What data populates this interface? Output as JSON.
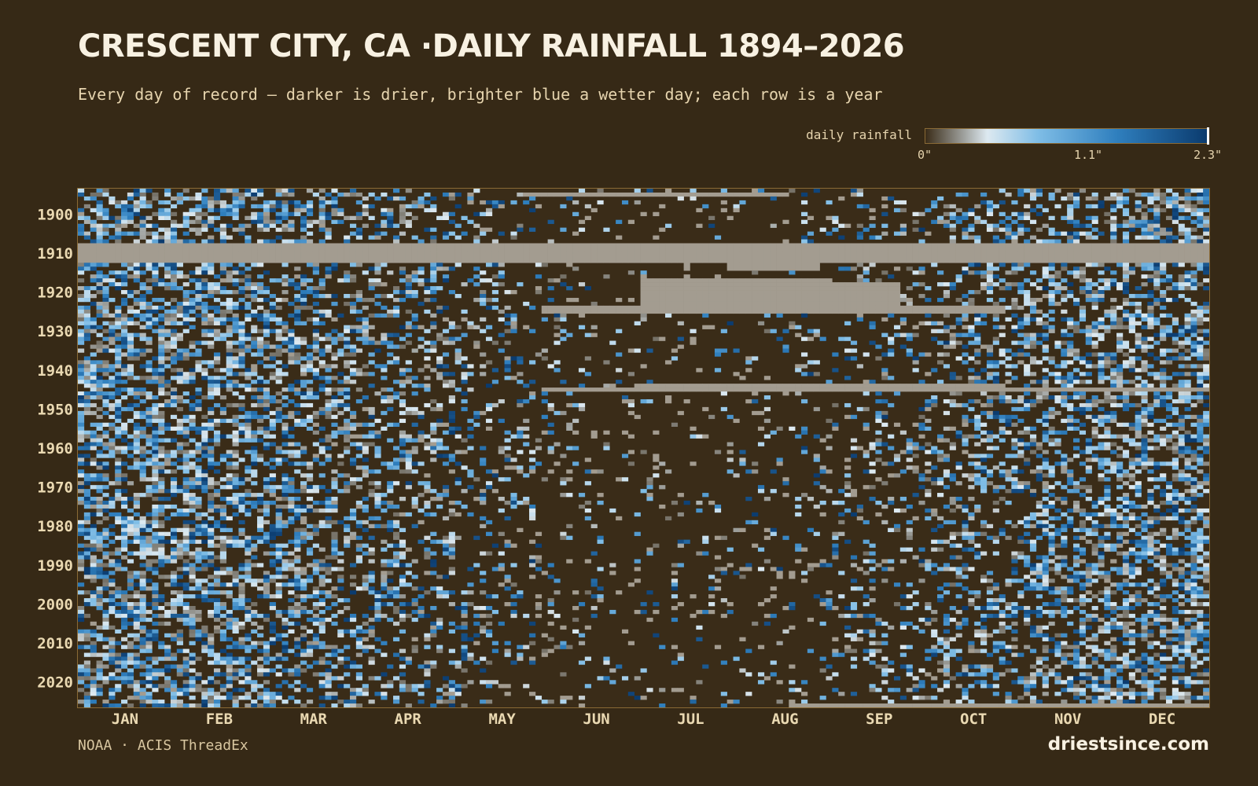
{
  "title": "CRESCENT CITY, CA ·DAILY RAINFALL 1894–2026",
  "subtitle": "Every day of record — darker is drier, brighter blue a wetter day; each row is a year",
  "legend": {
    "label": "daily rainfall",
    "ticks": [
      "0\"",
      "1.1\"",
      "2.3\""
    ]
  },
  "source": "NOAA · ACIS ThreadEx",
  "brand": "driestsince.com",
  "colors": {
    "background": "#362916",
    "missing": "#a39c90",
    "scale": [
      "#3a2c18",
      "#dde9f0",
      "#7fbde6",
      "#2f7fbe",
      "#0b3b6e"
    ]
  },
  "chart_data": {
    "type": "heatmap",
    "title": "CRESCENT CITY, CA ·DAILY RAINFALL 1894–2026",
    "x_axis": {
      "labels": [
        "JAN",
        "FEB",
        "MAR",
        "APR",
        "MAY",
        "JUN",
        "JUL",
        "AUG",
        "SEP",
        "OCT",
        "NOV",
        "DEC"
      ],
      "range": [
        1,
        366
      ]
    },
    "y_axis": {
      "labels": [
        "1900",
        "1910",
        "1920",
        "1930",
        "1940",
        "1950",
        "1960",
        "1970",
        "1980",
        "1990",
        "2000",
        "2010",
        "2020"
      ],
      "range": [
        1894,
        2026
      ]
    },
    "color_scale": {
      "min": 0,
      "max": 2.3,
      "unit": "in"
    },
    "missing_spans": [
      {
        "year_start": 1895,
        "year_end": 1895,
        "day_start": 145,
        "day_end": 230
      },
      {
        "year_start": 1908,
        "year_end": 1912,
        "day_start": 1,
        "day_end": 366
      },
      {
        "year_start": 1913,
        "year_end": 1914,
        "day_start": 210,
        "day_end": 240
      },
      {
        "year_start": 1917,
        "year_end": 1925,
        "day_start": 182,
        "day_end": 243
      },
      {
        "year_start": 1918,
        "year_end": 1925,
        "day_start": 244,
        "day_end": 266
      },
      {
        "year_start": 1924,
        "year_end": 1925,
        "day_start": 150,
        "day_end": 300
      },
      {
        "year_start": 1944,
        "year_end": 1945,
        "day_start": 180,
        "day_end": 300
      },
      {
        "year_start": 1945,
        "year_end": 1945,
        "day_start": 150,
        "day_end": 366
      },
      {
        "year_start": 2026,
        "year_end": 2026,
        "day_start": 230,
        "day_end": 366
      }
    ]
  }
}
